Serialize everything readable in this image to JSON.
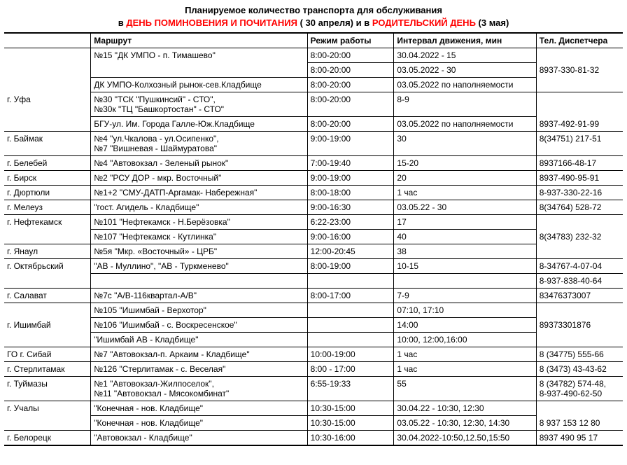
{
  "title_line1": "Планируемое количество транспорта для обслуживания",
  "title_line2_prefix": "в ",
  "title_red1": "ДЕНЬ ПОМИНОВЕНИЯ  И ПОЧИТАНИЯ",
  "title_mid": " ( 30 апреля) и в ",
  "title_red2": "РОДИТЕЛЬСКИЙ ДЕНЬ",
  "title_suffix": " (3 мая)",
  "headers": {
    "col1": "",
    "col2": "Маршрут",
    "col3": "Режим работы",
    "col4": "Интервал движения, мин",
    "col5": "Тел. Диспетчера"
  },
  "col_widths": [
    "14%",
    "35%",
    "14%",
    "23%",
    "14%"
  ],
  "rows": [
    {
      "c1": "",
      "c2": "№15 \"ДК УМПО - п. Тимашево\"",
      "c3": "8:00-20:00",
      "c4": "30.04.2022 - 15",
      "c5": "",
      "c1_merge_start": true,
      "c2_merge_start": true,
      "c5_merge_start": true
    },
    {
      "c1": "",
      "c2": "",
      "c3": "8:00-20:00",
      "c4": "03.05.2022 - 30",
      "c5": "8937-330-81-32",
      "c1_merge_cont": true,
      "c2_merge_cont": true,
      "c5_merge_cont": true
    },
    {
      "c1": "",
      "c2": "ДК УМПО-Колхозный рынок-сев.Кладбище",
      "c3": "8:00-20:00",
      "c4": "03.05.2022 по наполняемости",
      "c5": "",
      "c1_merge_cont": true,
      "c5_merge_end": true
    },
    {
      "c1": "г. Уфа",
      "c2": "№30 \"ТСК \"Пушкинсий\" - СТО\",\n№30к \"ТЦ \"Башкортостан\" - СТО\"",
      "c3": "8:00-20:00",
      "c4": "8-9",
      "c5": "",
      "c1_merge_cont": true,
      "c5_merge_start": true
    },
    {
      "c1": "",
      "c2": "БГУ-ул. Им. Города Галле-Юж.Кладбище",
      "c3": "8:00-20:00",
      "c4": "03.05.2022 по наполняемости",
      "c5": "8937-492-91-99",
      "c1_merge_end": true,
      "c5_merge_end": true,
      "c5_middle_text": true
    },
    {
      "c1": "г. Баймак",
      "c2": "№4 \"ул.Чкалова - ул.Осипенко\",\n№7 \"Вишневая - Шаймуратова\"",
      "c3": "9:00-19:00",
      "c4": "30",
      "c5": "8(34751) 217-51"
    },
    {
      "c1": "г. Белебей",
      "c2": "№4 \"Автовокзал - Зеленый рынок\"",
      "c3": "7:00-19:40",
      "c4": "15-20",
      "c5": "8937166-48-17"
    },
    {
      "c1": "г. Бирск",
      "c2": "№2 \"РСУ ДОР - мкр. Восточный\"",
      "c3": "9:00-19:00",
      "c4": "20",
      "c5": "8937-490-95-91"
    },
    {
      "c1": "г. Дюртюли",
      "c2": "№1+2 \"СМУ-ДАТП-Аргамак- Набережная\"",
      "c3": "8:00-18:00",
      "c4": "1 час",
      "c5": "8-937-330-22-16"
    },
    {
      "c1": "г. Мелеуз",
      "c2": "\"гост. Агидель - Кладбище\"",
      "c3": "9:00-16:30",
      "c4": "03.05.22 - 30",
      "c5": "8(34764) 528-72"
    },
    {
      "c1": "г. Нефтекамск",
      "c2": "№101 \"Нефтекамск - Н.Берёзовка\"",
      "c3": "6:22-23:00",
      "c4": "17",
      "c5": "",
      "c1_merge_start": true,
      "c5_merge_start": true
    },
    {
      "c1": "",
      "c2": "№107 \"Нефтекамск - Кутлинка\"",
      "c3": "9:00-16:00",
      "c4": "40",
      "c5": "8(34783) 232-32",
      "c1_merge_end": true,
      "c1_text": "г. Нефтекамск",
      "c5_merge_cont": true
    },
    {
      "c1": "г. Янаул",
      "c2": "№5я \"Мкр. «Восточный» - ЦРБ\"",
      "c3": "12:00-20:45",
      "c4": "38",
      "c5": "",
      "c5_merge_end": true
    },
    {
      "c1": "г. Октябрьский",
      "c2": "\"АВ - Муллино\", \"АВ - Туркменево\"",
      "c3": "8:00-19:00",
      "c4": "10-15",
      "c5": "8-34767-4-07-04",
      "c1_merge_start": true
    },
    {
      "c1": "",
      "c2": "",
      "c3": "",
      "c4": "",
      "c5": "8-937-838-40-64",
      "only_c5_row": true,
      "c1_merge_end": true,
      "c2_merge_cont": true,
      "c3_merge_cont": true,
      "c4_merge_cont": true
    },
    {
      "c1": "г. Салават",
      "c2": "№7с \"А/В-116квартал-А/В\"",
      "c3": "8:00-17:00",
      "c4": "7-9",
      "c5": "83476373007"
    },
    {
      "c1": "",
      "c2": "№105 \"Ишимбай - Верхотор\"",
      "c3": "",
      "c4": "07:10, 17:10",
      "c5": "",
      "c1_merge_start": true,
      "c5_merge_start": true
    },
    {
      "c1": "г. Ишимбай",
      "c2": "№106 \"Ишимбай - с. Воскресенское\"",
      "c3": "",
      "c4": "14:00",
      "c5": "89373301876",
      "c1_merge_cont": true,
      "c5_merge_cont": true
    },
    {
      "c1": "",
      "c2": "\"Ишимбай АВ - Кладбище\"",
      "c3": "",
      "c4": "10:00, 12:00,16:00",
      "c5": "",
      "c1_merge_end": true,
      "c5_merge_end": true
    },
    {
      "c1": "ГО г. Сибай",
      "c2": "№7 \"Автовокзал-п. Аркаим - Кладбище\"",
      "c3": "10:00-19:00",
      "c4": "1 час",
      "c5": "8 (34775) 555-66"
    },
    {
      "c1": "г. Стерлитамак",
      "c2": "№126 \"Стерлитамак - с. Веселая\"",
      "c3": "8:00 - 17:00",
      "c4": "1 час",
      "c5": "8 (3473) 43-43-62"
    },
    {
      "c1": "г. Туймазы",
      "c2": "№1 \"Автовокзал-Жилпоселок\",\n№11 \"Автовокзал - Мясокомбинат\"",
      "c3": "6:55-19:33",
      "c4": "55",
      "c5": "8 (34782) 574-48,\n              8-937-490-62-50"
    },
    {
      "c1": "г. Учалы",
      "c2": "\"Конечная - нов. Кладбище\"",
      "c3": "10:30-15:00",
      "c4": "30.04.22 - 10:30, 12:30",
      "c5": "",
      "c1_merge_start": true,
      "c5_merge_start": true
    },
    {
      "c1": "",
      "c2": "\"Конечная - нов. Кладбище\"",
      "c3": "10:30-15:00",
      "c4": "03.05.22 - 10:30, 12:30, 14:30",
      "c5": "8 937 153 12 80",
      "c1_merge_end": true,
      "c5_merge_end": true,
      "c5_middle_text": true
    },
    {
      "c1": "г. Белорецк",
      "c2": "\"Автовокзал - Кладбище\"",
      "c3": "10:30-16:00",
      "c4": "30.04.2022-10:50,12.50,15:50",
      "c5": "8937 490 95 17"
    }
  ]
}
